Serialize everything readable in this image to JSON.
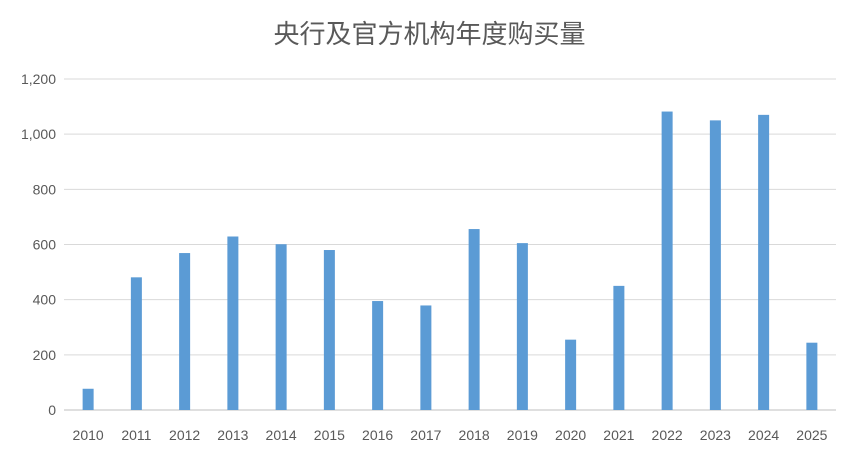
{
  "chart_data": {
    "type": "bar",
    "title": "央行及官方机构年度购买量",
    "categories": [
      "2010",
      "2011",
      "2012",
      "2013",
      "2014",
      "2015",
      "2016",
      "2017",
      "2018",
      "2019",
      "2020",
      "2021",
      "2022",
      "2023",
      "2024",
      "2025"
    ],
    "values": [
      77,
      481,
      569,
      629,
      601,
      580,
      395,
      379,
      656,
      605,
      255,
      450,
      1082,
      1050,
      1070,
      244
    ],
    "ylim": [
      0,
      1200
    ],
    "yticks": [
      0,
      200,
      400,
      600,
      800,
      1000,
      1200
    ],
    "ytick_labels": [
      "0",
      "200",
      "400",
      "600",
      "800",
      "1,000",
      "1,200"
    ],
    "grid": true,
    "bar_color": "#5B9BD5",
    "grid_color": "#D9D9D9",
    "text_color": "#595959"
  }
}
